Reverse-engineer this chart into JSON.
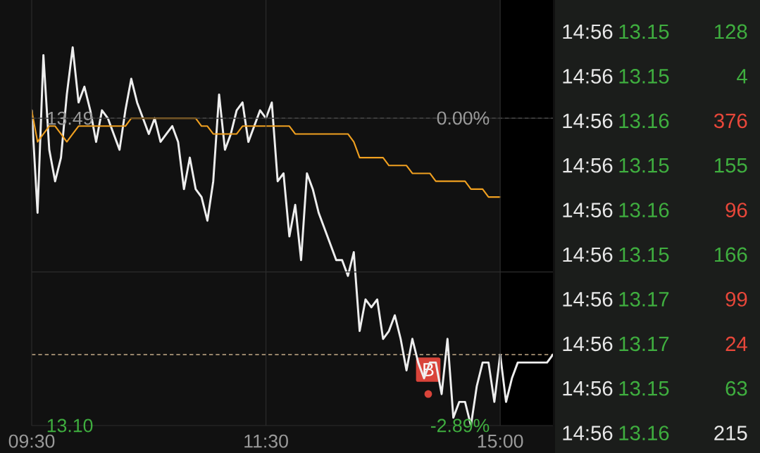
{
  "chart_data": [
    {
      "type": "line",
      "ylim": [
        13.1,
        13.64
      ],
      "y2lim": [
        -2.89,
        1.11
      ],
      "categories": [
        "09:30",
        null,
        null,
        null,
        null,
        null,
        null,
        null,
        null,
        null,
        null,
        null,
        null,
        null,
        null,
        null,
        null,
        null,
        null,
        null,
        null,
        null,
        null,
        null,
        null,
        null,
        null,
        null,
        null,
        null,
        null,
        null,
        null,
        null,
        null,
        null,
        null,
        null,
        null,
        null,
        "11:30",
        null,
        null,
        null,
        null,
        null,
        null,
        null,
        null,
        null,
        null,
        null,
        null,
        null,
        null,
        null,
        null,
        null,
        null,
        null,
        null,
        null,
        null,
        null,
        null,
        null,
        null,
        null,
        null,
        null,
        null,
        null,
        null,
        null,
        null,
        null,
        null,
        null,
        null,
        null,
        "15:00",
        null,
        null,
        null,
        null,
        null,
        null,
        null,
        null,
        null
      ],
      "yticks": [
        {
          "value": 13.1,
          "label": "13.10"
        },
        {
          "value": 13.295,
          "label": null
        },
        13.49
      ],
      "y2ticks": [
        {
          "value": -2.89,
          "label": "-2.89%"
        },
        {
          "value": 0,
          "label": "0.00%"
        }
      ],
      "grid": true,
      "ref_lines": [
        {
          "axis": "y",
          "value": 13.49,
          "color": "#888888",
          "line_style": "dashed"
        },
        {
          "axis": "y",
          "value": 13.19,
          "color": "#e8c9a0",
          "line_style": "dashed"
        }
      ],
      "annotations": [
        {
          "text": "B",
          "y": 13.14
        }
      ],
      "series": [
        {
          "color": "#eeeeee",
          "values": [
            13.5,
            13.37,
            13.57,
            13.45,
            13.41,
            13.44,
            13.52,
            13.58,
            13.51,
            13.53,
            13.5,
            13.46,
            13.5,
            13.49,
            13.47,
            13.45,
            13.5,
            13.54,
            13.51,
            13.49,
            13.47,
            13.49,
            13.46,
            13.47,
            13.48,
            13.46,
            13.4,
            13.44,
            13.4,
            13.39,
            13.36,
            13.41,
            13.52,
            13.45,
            13.47,
            13.5,
            13.51,
            13.46,
            13.48,
            13.5,
            13.49,
            13.51,
            13.41,
            13.42,
            13.34,
            13.38,
            13.31,
            13.42,
            13.4,
            13.37,
            13.35,
            13.33,
            13.31,
            13.31,
            13.29,
            13.32,
            13.22,
            13.26,
            13.25,
            13.26,
            13.21,
            13.22,
            13.24,
            13.21,
            13.17,
            13.21,
            13.18,
            13.16,
            13.18,
            13.18,
            13.14,
            13.21,
            13.11,
            13.13,
            13.13,
            13.1,
            13.15,
            13.18,
            13.18,
            13.13,
            13.19,
            13.13,
            13.16,
            13.18,
            13.18,
            13.18,
            13.18,
            13.18,
            13.18,
            13.19
          ]
        },
        {
          "color": "#f0a020",
          "values": [
            13.5,
            13.46,
            13.47,
            13.48,
            13.48,
            13.47,
            13.46,
            13.47,
            13.48,
            13.48,
            13.48,
            13.48,
            13.48,
            13.48,
            13.48,
            13.48,
            13.48,
            13.49,
            13.49,
            13.49,
            13.49,
            13.49,
            13.49,
            13.49,
            13.49,
            13.49,
            13.49,
            13.49,
            13.49,
            13.48,
            13.48,
            13.47,
            13.47,
            13.47,
            13.47,
            13.47,
            13.48,
            13.48,
            13.48,
            13.48,
            13.48,
            13.48,
            13.48,
            13.48,
            13.48,
            13.47,
            13.47,
            13.47,
            13.47,
            13.47,
            13.47,
            13.47,
            13.47,
            13.47,
            13.47,
            13.46,
            13.44,
            13.44,
            13.44,
            13.44,
            13.44,
            13.43,
            13.43,
            13.43,
            13.43,
            13.42,
            13.42,
            13.42,
            13.42,
            13.41,
            13.41,
            13.41,
            13.41,
            13.41,
            13.41,
            13.4,
            13.4,
            13.4,
            13.39,
            13.39,
            13.39,
            null,
            null,
            null,
            null,
            null,
            null,
            null,
            null,
            null
          ]
        }
      ]
    },
    {
      "type": "other",
      "annotations": [
        "14:56",
        "13.15",
        "128",
        "14:56",
        "13.15",
        "4",
        "14:56",
        "13.16",
        "376",
        "14:56",
        "13.15",
        "155",
        "14:56",
        "13.16",
        "96",
        "14:56",
        "13.15",
        "166",
        "14:56",
        "13.17",
        "99",
        "14:56",
        "13.17",
        "24",
        "14:56",
        "13.15",
        "63",
        "14:56",
        "13.16",
        "215"
      ],
      "colors": [
        "#e8e8e8",
        "#3fae3f",
        "#3fae3f",
        "#e8e8e8",
        "#3fae3f",
        "#3fae3f",
        "#e8e8e8",
        "#3fae3f",
        "#e8473a",
        "#e8e8e8",
        "#3fae3f",
        "#3fae3f",
        "#e8e8e8",
        "#3fae3f",
        "#e8473a",
        "#e8e8e8",
        "#3fae3f",
        "#3fae3f",
        "#e8e8e8",
        "#3fae3f",
        "#e8473a",
        "#e8e8e8",
        "#3fae3f",
        "#e8473a",
        "#e8e8e8",
        "#3fae3f",
        "#3fae3f",
        "#e8e8e8",
        "#3fae3f",
        "#e8e8e8"
      ]
    }
  ]
}
